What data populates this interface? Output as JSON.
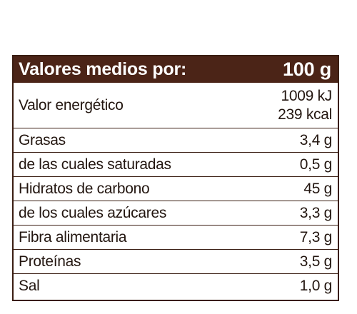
{
  "table": {
    "header": {
      "label": "Valores medios por:",
      "amount": "100 g"
    },
    "energy": {
      "label": "Valor energético",
      "kj": "1009 kJ",
      "kcal": "239 kcal"
    },
    "rows": [
      {
        "label": "Grasas",
        "value": "3,4 g"
      },
      {
        "label": "de las cuales saturadas",
        "value": "0,5 g"
      },
      {
        "label": "Hidratos de carbono",
        "value": "45 g"
      },
      {
        "label": "de los cuales azúcares",
        "value": "3,3 g"
      },
      {
        "label": "Fibra alimentaria",
        "value": "7,3 g"
      },
      {
        "label": "Proteínas",
        "value": "3,5 g"
      },
      {
        "label": "Sal",
        "value": "1,0 g"
      }
    ]
  },
  "colors": {
    "header_background": "#4b2417",
    "border": "#3a1d12",
    "text": "#231610"
  }
}
